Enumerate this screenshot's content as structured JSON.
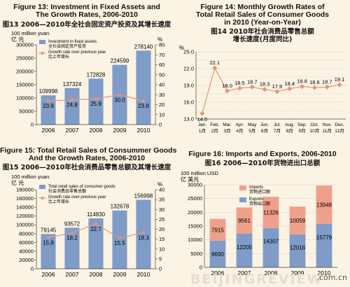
{
  "footer": {
    "watermark": "BEIJINGREVIEW",
    "url": ".com.cn"
  },
  "chart_data": [
    {
      "id": "fig13",
      "type": "bar",
      "title": "Figure 13: Investment in Fixed Assets and",
      "title2": "The Growth Rates, 2006-2010",
      "subtitle": "图13 2006—2010年全社会固定资产投资及其增长速度",
      "left_unit_en": "100 million yuan",
      "left_unit_zh": "亿  元",
      "right_unit": "%",
      "categories": [
        "2006",
        "2007",
        "2008",
        "2009",
        "2010"
      ],
      "series": [
        {
          "name": "Investment in fixed assets",
          "name_zh": "全社会固定资产投资",
          "type": "bar",
          "values": [
            109998,
            137324,
            172828,
            224599,
            278140
          ]
        },
        {
          "name": "Growth rate over previous year",
          "name_zh": "比上年增长",
          "type": "line",
          "axis": "right",
          "values": [
            23.9,
            24.8,
            25.9,
            30.0,
            23.8
          ]
        }
      ],
      "ylim": [
        0,
        300000
      ],
      "yticks": [
        "0",
        "50000",
        "100000",
        "150000",
        "200000",
        "250000",
        "300000"
      ],
      "y2lim": [
        0,
        80
      ],
      "y2ticks": [
        "0",
        "10",
        "20",
        "30",
        "40",
        "50",
        "60",
        "70",
        "80"
      ],
      "bar_color": "#7f9cc8",
      "line_color": "#e4957a"
    },
    {
      "id": "fig14",
      "type": "line",
      "title": "Figure 14: Monthly Growth Rates of",
      "title2": "Total Retail Sales of Consumer Goods",
      "title3": "in 2010 (Year-on-Year)",
      "subtitle": "图14 2010年社会消费品零售总额",
      "subtitle2": "增长速度(月度同比)",
      "right_unit": "%",
      "categories": [
        "Jan.",
        "Feb.",
        "Mar.",
        "Apr.",
        "May",
        "Jun.",
        "Jul.",
        "Aug.",
        "Sep.",
        "Oct.",
        "Nov.",
        "Dec."
      ],
      "categories_zh": [
        "1月",
        "2月",
        "3月",
        "4月",
        "5月",
        "6月",
        "7月",
        "8月",
        "9月",
        "10月",
        "11月",
        "12月"
      ],
      "series": [
        {
          "values": [
            14.0,
            22.1,
            18.0,
            18.5,
            18.7,
            18.3,
            17.9,
            18.4,
            18.8,
            18.6,
            18.7,
            19.1
          ]
        }
      ],
      "ylim": [
        13.0,
        25.0
      ],
      "yticks": [
        "13.0",
        "16.0",
        "19.0",
        "22.0",
        "25.0"
      ],
      "grid": true,
      "line_color": "#e4957a"
    },
    {
      "id": "fig15",
      "type": "bar",
      "title": "Figure 15: Total Retail Sales of Consummer Goods",
      "title2": "And the Growth Rates, 2006-2010",
      "subtitle": "图15 2006—2010年社会消费品零售总额及其增长速度",
      "left_unit_en": "100 million yuan",
      "left_unit_zh": "亿  元",
      "right_unit": "%",
      "categories": [
        "2006",
        "2007",
        "2008",
        "2009",
        "2010"
      ],
      "series": [
        {
          "name": "Total retail sales of consumer goods",
          "name_zh": "社会消费品零售总额",
          "type": "bar",
          "values": [
            79145,
            93572,
            114830,
            132678,
            156998
          ]
        },
        {
          "name": "Growth rate over previous year",
          "name_zh": "比上年增长",
          "type": "line",
          "axis": "right",
          "values": [
            15.8,
            18.2,
            22.7,
            15.5,
            18.3
          ]
        }
      ],
      "ylim": [
        0,
        180000
      ],
      "yticks": [
        "0",
        "20000",
        "40000",
        "60000",
        "80000",
        "100000",
        "120000",
        "140000",
        "160000",
        "180000"
      ],
      "y2lim": [
        0,
        40
      ],
      "y2ticks": [
        "0",
        "5",
        "10",
        "15",
        "20",
        "25",
        "30",
        "35",
        "40"
      ],
      "bar_color": "#7f9cc8",
      "line_color": "#e4957a"
    },
    {
      "id": "fig16",
      "type": "bar",
      "stacked": true,
      "title": "Figure 16: Imports and Exports, 2006-2010",
      "subtitle": "图16 2006—2010年货物进出口总额",
      "left_unit_en": "100 million USD",
      "left_unit_zh": "亿  美元",
      "categories": [
        "2006",
        "2007",
        "2008",
        "2009",
        "2010"
      ],
      "series": [
        {
          "name": "Exports",
          "name_zh": "货物出口额",
          "values": [
            9690,
            12205,
            14307,
            12016,
            15779
          ],
          "color": "#7f9cc8"
        },
        {
          "name": "Imports",
          "name_zh": "货物进口额",
          "values": [
            7915,
            9561,
            11326,
            10059,
            13948
          ],
          "color": "#efa08a"
        }
      ],
      "ylim": [
        0,
        30000
      ],
      "yticks": [
        "0",
        "5000",
        "10000",
        "15000",
        "20000",
        "25000",
        "30000"
      ]
    }
  ]
}
